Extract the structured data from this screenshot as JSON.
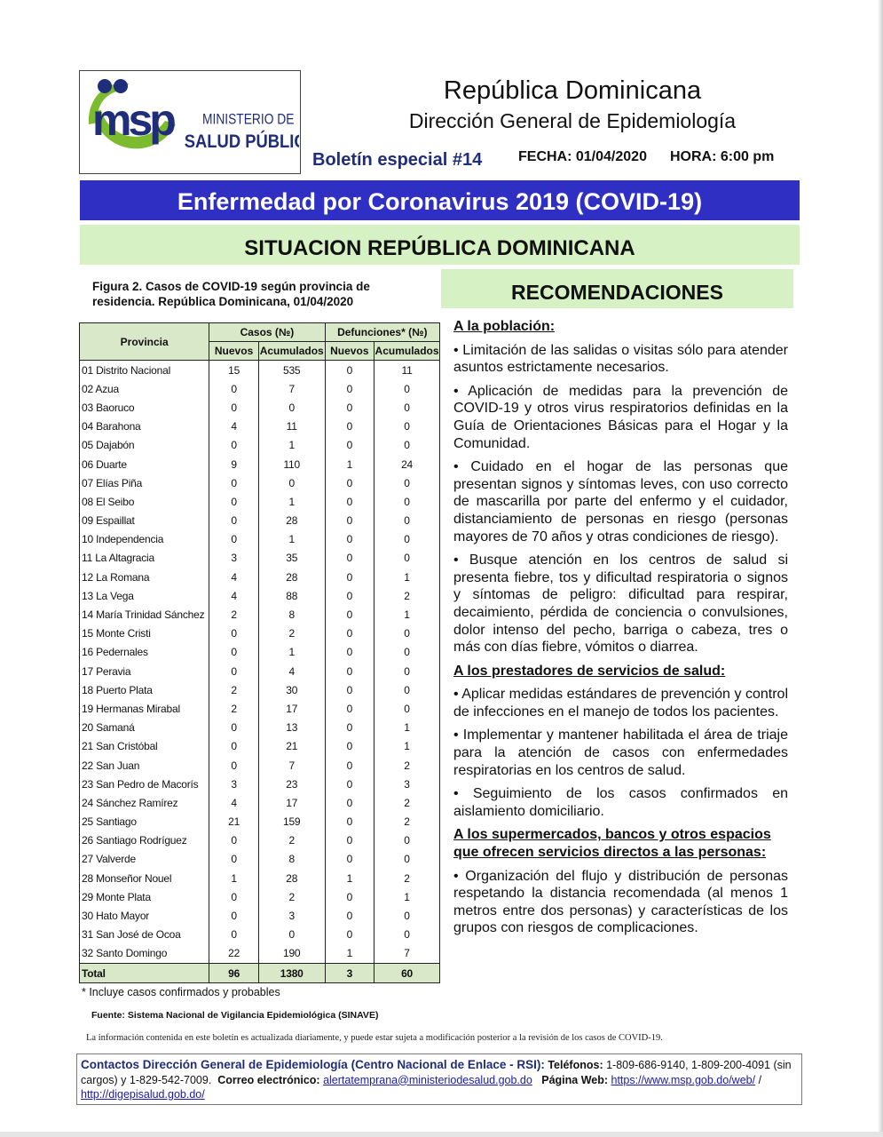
{
  "header": {
    "logo_text": "msp MINISTERIO DE SALUD PÚBLICA",
    "logo_line1": "MINISTERIO DE",
    "logo_line2": "SALUD PÚBLICA",
    "title": "República Dominicana",
    "subtitle": "Dirección General de Epidemiología",
    "bulletin": "Boletín especial #14",
    "fecha": "FECHA: 01/04/2020",
    "hora": "HORA: 6:00 pm"
  },
  "banners": {
    "main": "Enfermedad por Coronavirus 2019 (COVID-19)",
    "situation": "SITUACION REPÚBLICA DOMINICANA",
    "recommendations": "RECOMENDACIONES"
  },
  "colors": {
    "banner_blue": "#2f2fc4",
    "banner_green": "#d6f2c5",
    "table_header": "#d9e8c9",
    "title_navy": "#1f2d7a"
  },
  "figure": {
    "caption": "Figura 2. Casos de COVID-19 según provincia de residencia. República Dominicana, 01/04/2020",
    "headers": {
      "provincia": "Provincia",
      "casos": "Casos (№)",
      "defunciones": "Defunciones* (№)",
      "nuevos": "Nuevos",
      "acumulados": "Acumulados"
    },
    "rows": [
      [
        "01 Distrito Nacional",
        "15",
        "535",
        "0",
        "11"
      ],
      [
        "02 Azua",
        "0",
        "7",
        "0",
        "0"
      ],
      [
        "03 Baoruco",
        "0",
        "0",
        "0",
        "0"
      ],
      [
        "04 Barahona",
        "4",
        "11",
        "0",
        "0"
      ],
      [
        "05 Dajabón",
        "0",
        "1",
        "0",
        "0"
      ],
      [
        "06 Duarte",
        "9",
        "110",
        "1",
        "24"
      ],
      [
        "07 Elías Piña",
        "0",
        "0",
        "0",
        "0"
      ],
      [
        "08 El Seibo",
        "0",
        "1",
        "0",
        "0"
      ],
      [
        "09 Espaillat",
        "0",
        "28",
        "0",
        "0"
      ],
      [
        "10 Independencia",
        "0",
        "1",
        "0",
        "0"
      ],
      [
        "11 La Altagracia",
        "3",
        "35",
        "0",
        "0"
      ],
      [
        "12 La Romana",
        "4",
        "28",
        "0",
        "1"
      ],
      [
        "13 La Vega",
        "4",
        "88",
        "0",
        "2"
      ],
      [
        "14 María Trinidad Sánchez",
        "2",
        "8",
        "0",
        "1"
      ],
      [
        "15 Monte Cristi",
        "0",
        "2",
        "0",
        "0"
      ],
      [
        "16 Pedernales",
        "0",
        "1",
        "0",
        "0"
      ],
      [
        "17 Peravia",
        "0",
        "4",
        "0",
        "0"
      ],
      [
        "18 Puerto Plata",
        "2",
        "30",
        "0",
        "0"
      ],
      [
        "19 Hermanas Mirabal",
        "2",
        "17",
        "0",
        "0"
      ],
      [
        "20 Samaná",
        "0",
        "13",
        "0",
        "1"
      ],
      [
        "21 San Cristóbal",
        "0",
        "21",
        "0",
        "1"
      ],
      [
        "22 San Juan",
        "0",
        "7",
        "0",
        "2"
      ],
      [
        "23 San Pedro de Macorís",
        "3",
        "23",
        "0",
        "3"
      ],
      [
        "24 Sánchez Ramírez",
        "4",
        "17",
        "0",
        "2"
      ],
      [
        "25 Santiago",
        "21",
        "159",
        "0",
        "2"
      ],
      [
        "26 Santiago Rodríguez",
        "0",
        "2",
        "0",
        "0"
      ],
      [
        "27 Valverde",
        "0",
        "8",
        "0",
        "0"
      ],
      [
        "28 Monseñor Nouel",
        "1",
        "28",
        "1",
        "2"
      ],
      [
        "29 Monte Plata",
        "0",
        "2",
        "0",
        "1"
      ],
      [
        "30 Hato Mayor",
        "0",
        "3",
        "0",
        "0"
      ],
      [
        "31 San José de Ocoa",
        "0",
        "0",
        "0",
        "0"
      ],
      [
        "32 Santo Domingo",
        "22",
        "190",
        "1",
        "7"
      ]
    ],
    "total": [
      "Total",
      "96",
      "1380",
      "3",
      "60"
    ],
    "note": "* Incluye casos confirmados y probables",
    "source": "Fuente: Sistema Nacional de Vigilancia Epidemiológica (SINAVE)"
  },
  "recommendations": {
    "sections": [
      {
        "heading": "A la población:",
        "items": [
          "• Limitación de las salidas o visitas sólo para atender asuntos estrictamente necesarios.",
          "• Aplicación de medidas para la prevención de COVID-19 y otros virus respiratorios definidas en la Guía de Orientaciones Básicas para el Hogar y la Comunidad.",
          "• Cuidado en el hogar de las personas que presentan signos y síntomas leves, con uso correcto de mascarilla por parte del enfermo y el cuidador, distanciamiento de personas en riesgo (personas mayores de 70 años y otras condiciones de riesgo).",
          "• Busque atención en los centros de salud si presenta fiebre, tos y dificultad respiratoria o signos y síntomas de peligro: dificultad para respirar, decaimiento, pérdida de conciencia o convulsiones, dolor intenso del pecho, barriga o cabeza, tres o más con días fiebre, vómitos o diarrea."
        ]
      },
      {
        "heading": "A los prestadores de servicios de salud:",
        "items": [
          "• Aplicar medidas estándares de prevención y control de infecciones en el manejo de todos los pacientes.",
          "• Implementar y mantener habilitada el área de triaje para la atención de casos con enfermedades respiratorias en los centros de salud.",
          "• Seguimiento de los casos confirmados en aislamiento domiciliario."
        ]
      },
      {
        "heading": "A los supermercados, bancos y otros espacios que ofrecen servicios directos a las personas:",
        "items": [
          "• Organización del flujo y distribución de personas respetando la distancia recomendada (al menos 1 metros entre dos personas) y características de los grupos con riesgos de complicaciones."
        ]
      }
    ]
  },
  "footer": {
    "disclaimer": "La información contenida en este boletín es actualizada diariamente, y puede estar sujeta a modificación posterior a la revisión de los casos de COVID-19.",
    "contact_lead": "Contactos Dirección General de Epidemiología (Centro Nacional de Enlace - RSI):",
    "phones_label": "Teléfonos:",
    "phones": "1-809-686-9140, 1-809-200-4091 (sin cargos) y 1-829-542-7009.",
    "email_label": "Correo electrónico:",
    "email": "alertatemprana@ministeriodesalud.gob.do",
    "web_label": "Página Web:",
    "web1": "https://www.msp.gob.do/web/",
    "separator": "/",
    "web2": "http://digepisalud.gob.do/"
  }
}
